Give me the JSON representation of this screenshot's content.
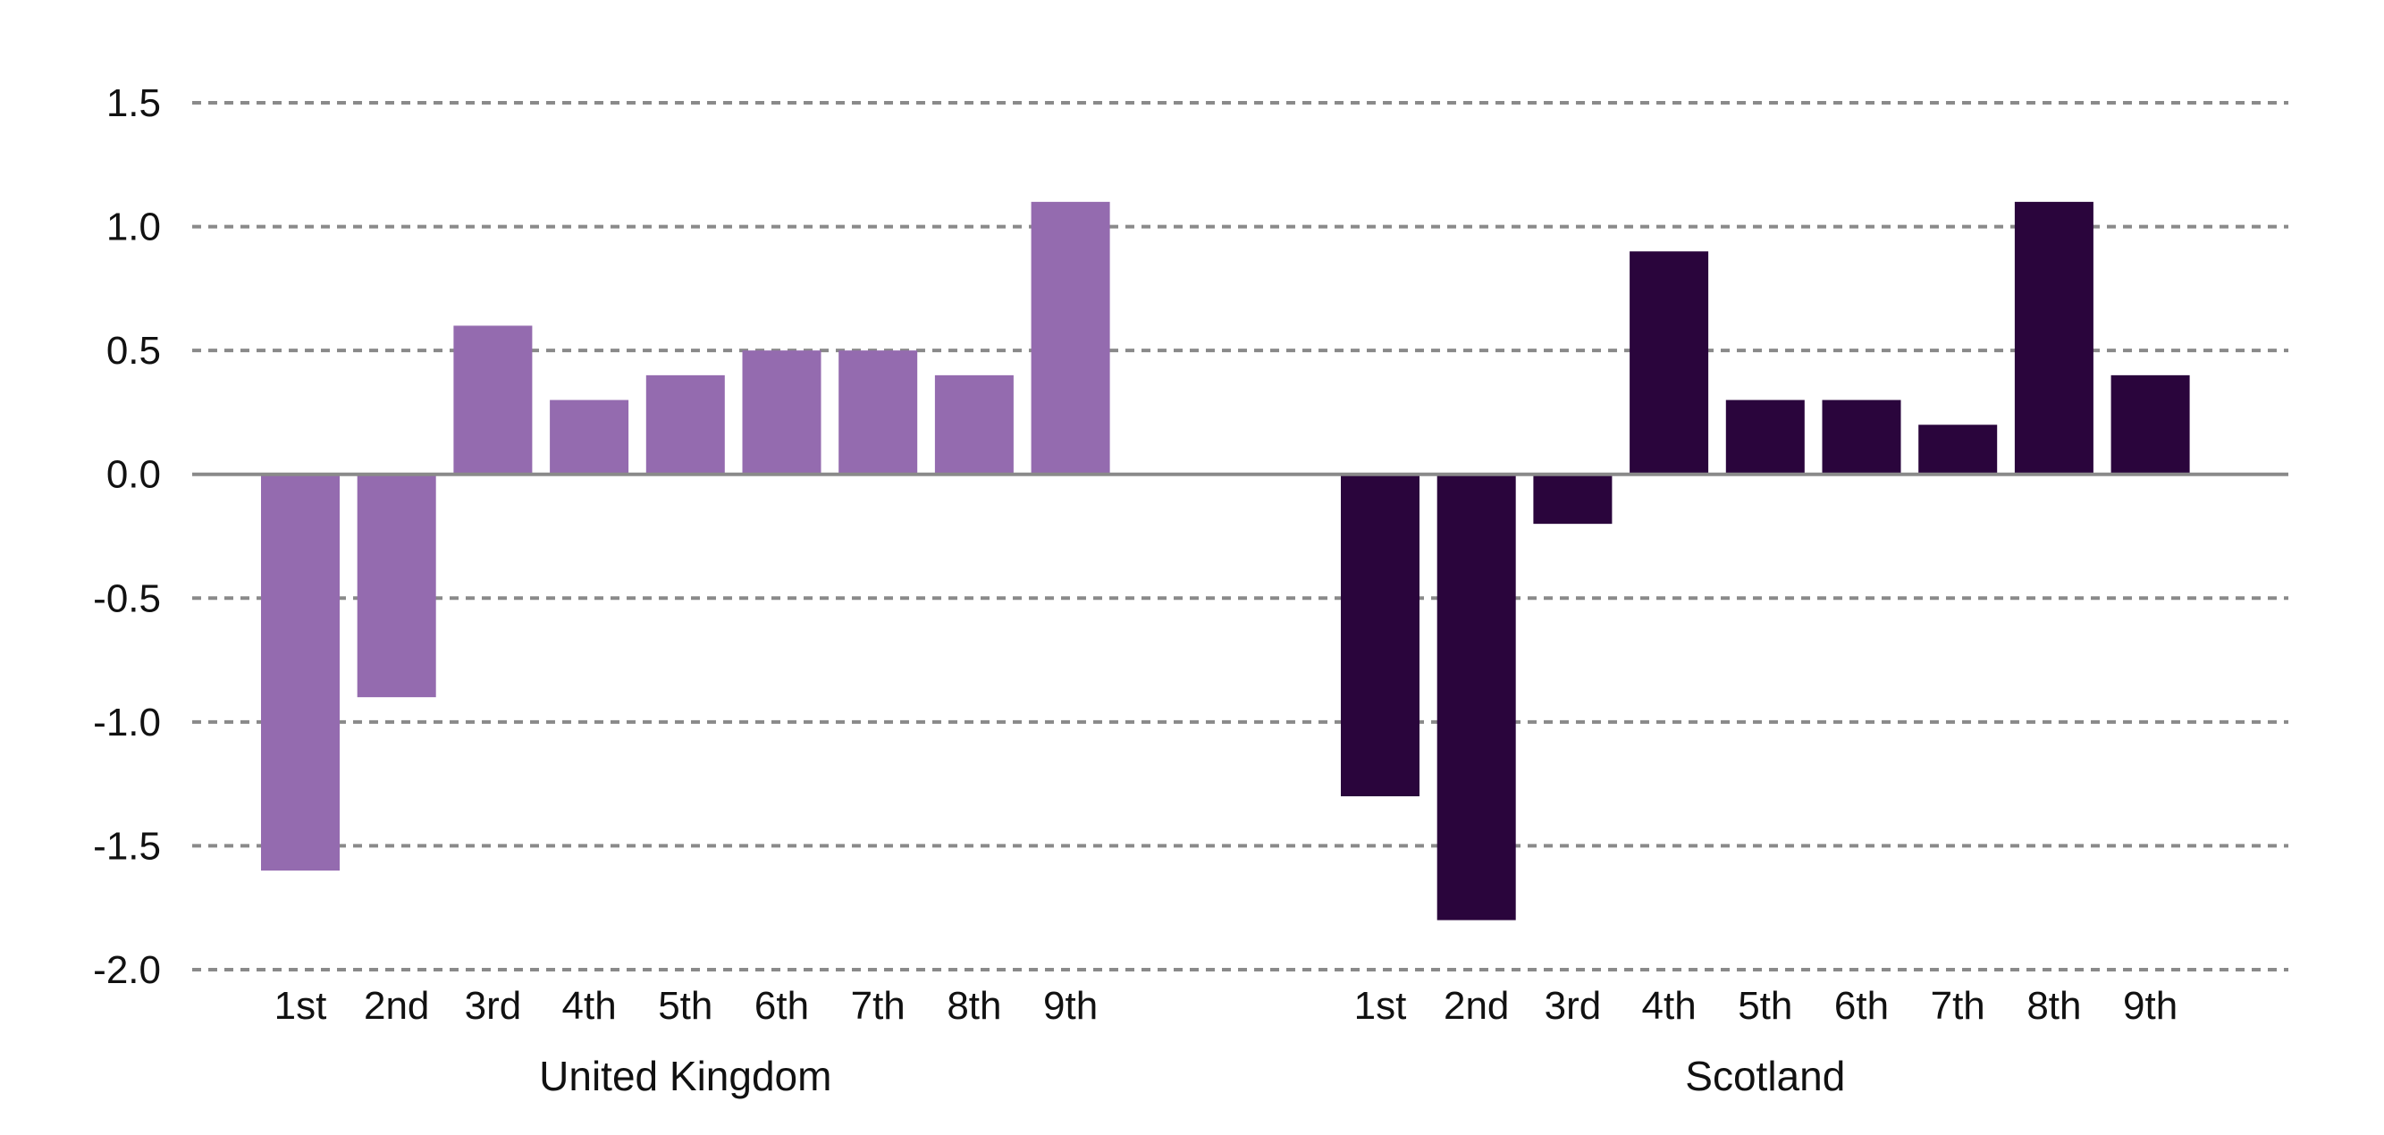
{
  "chart_data": {
    "type": "bar",
    "title": "",
    "xlabel": "",
    "ylabel": "",
    "ylim": [
      -2.0,
      1.5
    ],
    "yticks": [
      "1.5",
      "1.0",
      "0.5",
      "0.0",
      "-0.5",
      "-1.0",
      "-1.5",
      "-2.0"
    ],
    "ytick_values": [
      1.5,
      1.0,
      0.5,
      0.0,
      -0.5,
      -1.0,
      -1.5,
      -2.0
    ],
    "grid": "horizontal dashed",
    "legend": "none",
    "groups": [
      {
        "name": "United Kingdom",
        "color": "#946BAF",
        "categories": [
          "1st",
          "2nd",
          "3rd",
          "4th",
          "5th",
          "6th",
          "7th",
          "8th",
          "9th"
        ],
        "values": [
          -1.6,
          -0.9,
          0.6,
          0.3,
          0.4,
          0.5,
          0.5,
          0.4,
          1.1
        ]
      },
      {
        "name": "Scotland",
        "color": "#2A053C",
        "categories": [
          "1st",
          "2nd",
          "3rd",
          "4th",
          "5th",
          "6th",
          "7th",
          "8th",
          "9th"
        ],
        "values": [
          -1.3,
          -1.8,
          -0.2,
          0.9,
          0.3,
          0.3,
          0.2,
          1.1,
          0.4
        ]
      }
    ]
  }
}
